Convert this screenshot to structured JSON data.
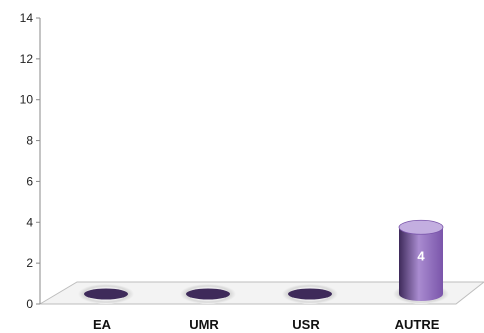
{
  "chart_data": {
    "type": "bar",
    "style": "3d-cylinder",
    "categories": [
      "EA",
      "UMR",
      "USR",
      "AUTRE"
    ],
    "values": [
      0,
      0,
      0,
      4
    ],
    "data_labels": [
      "",
      "",
      "",
      "4"
    ],
    "ylim": [
      0,
      14
    ],
    "yticks": [
      "0",
      "2",
      "4",
      "6",
      "8",
      "10",
      "12",
      "14"
    ],
    "grid": false,
    "legend": "none",
    "colors": {
      "bar_light": "#a98bd0",
      "bar_mid": "#7a55aa",
      "bar_dark": "#3e2a5a",
      "bar_top": "#c3aee0",
      "floor_fill": "#f3f3f3",
      "floor_edge": "#bdbdbd",
      "axis": "#888888"
    }
  }
}
